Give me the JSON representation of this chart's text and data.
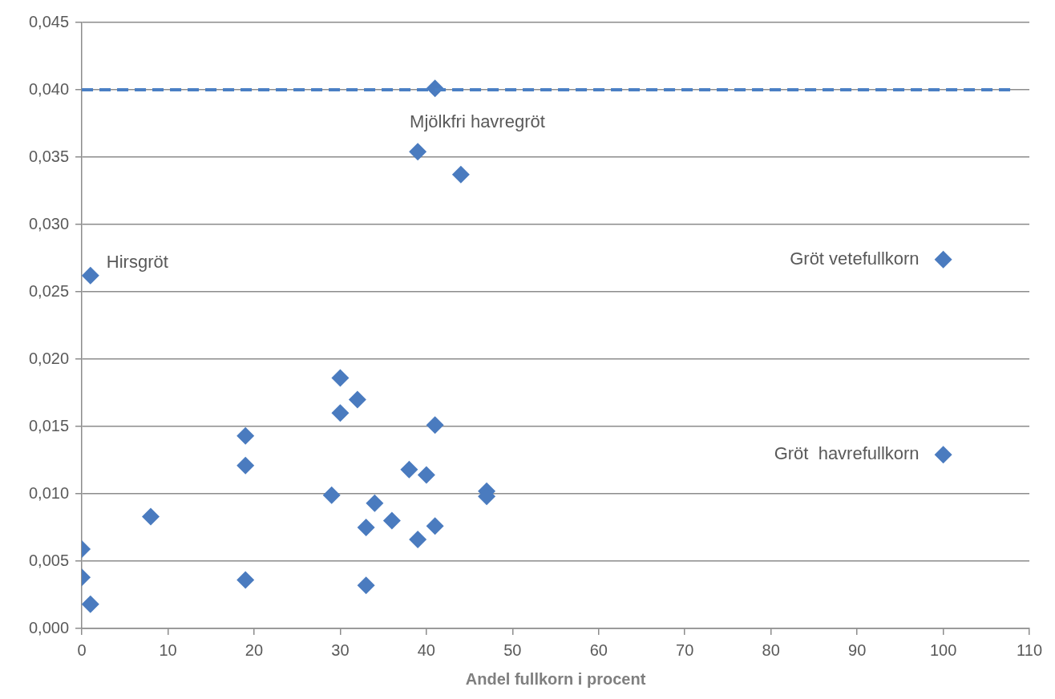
{
  "chart_data": {
    "type": "scatter",
    "xlabel": "Andel fullkorn i procent",
    "x": [
      41,
      39,
      44,
      1,
      100,
      100,
      30,
      32,
      30,
      41,
      19,
      19,
      38,
      40,
      47,
      47,
      29,
      34,
      8,
      36,
      33,
      41,
      39,
      0,
      0,
      19,
      33,
      1
    ],
    "series": [
      {
        "color": "#4a7bbf",
        "values": [
          0.0401,
          0.0354,
          0.0337,
          0.0262,
          0.0274,
          0.0129,
          0.0186,
          0.017,
          0.016,
          0.0151,
          0.0143,
          0.0121,
          0.0118,
          0.0114,
          0.0102,
          0.0098,
          0.0099,
          0.0093,
          0.0083,
          0.008,
          0.0075,
          0.0076,
          0.0066,
          0.0059,
          0.0038,
          0.0036,
          0.0032,
          0.0018
        ]
      }
    ],
    "xlim": [
      0,
      110
    ],
    "xticks": [
      0,
      10,
      20,
      30,
      40,
      50,
      60,
      70,
      80,
      90,
      100,
      110
    ],
    "ylim": [
      0,
      0.045
    ],
    "yticks": [
      {
        "value": 0,
        "label": "0,000"
      },
      {
        "value": 0.005,
        "label": "0,005"
      },
      {
        "value": 0.01,
        "label": "0,010"
      },
      {
        "value": 0.015,
        "label": "0,015"
      },
      {
        "value": 0.02,
        "label": "0,020"
      },
      {
        "value": 0.025,
        "label": "0,025"
      },
      {
        "value": 0.03,
        "label": "0,030"
      },
      {
        "value": 0.035,
        "label": "0,035"
      },
      {
        "value": 0.04,
        "label": "0,040"
      },
      {
        "value": 0.045,
        "label": "0,045"
      }
    ],
    "ref_lines": [
      {
        "axis": "y",
        "value": 0.04,
        "color": "#4a7fc4",
        "line_style": "dashed"
      }
    ],
    "annotations": [
      {
        "text": "Hirsgröt",
        "x": 1,
        "y": 0.0262
      },
      {
        "text": "Mjölkfri havregröt",
        "x": 39,
        "y": 0.0354
      },
      {
        "text": "Gröt vetefullkorn",
        "x": 100,
        "y": 0.0274
      },
      {
        "text": "Gröt  havrefullkorn",
        "x": 100,
        "y": 0.0129
      }
    ],
    "grid": "y",
    "marker": "diamond"
  }
}
